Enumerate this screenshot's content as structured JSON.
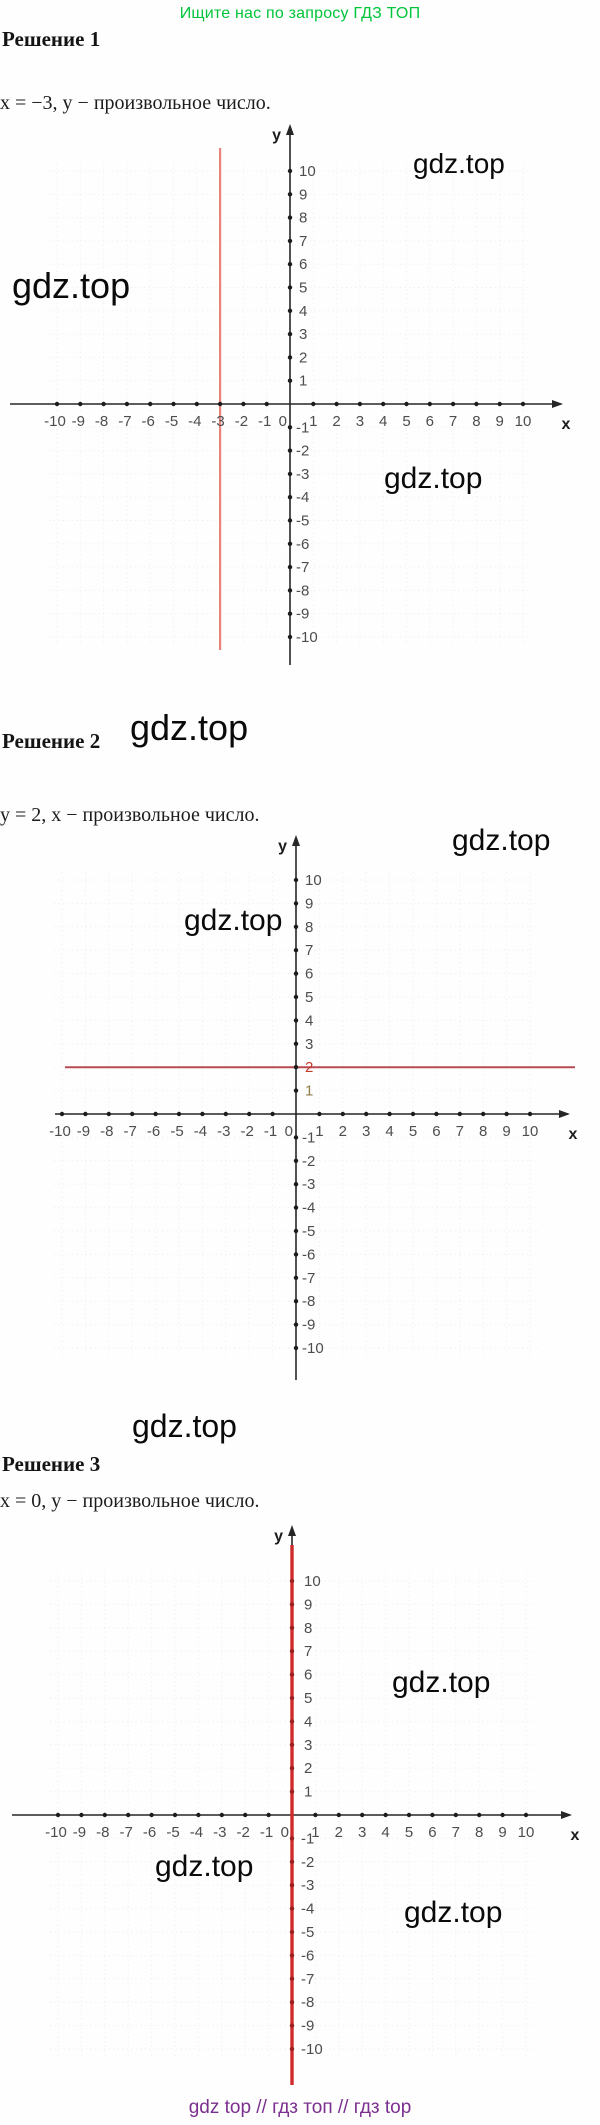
{
  "header": {
    "text": "Ищите нас по запросу ГДЗ ТОП",
    "color": "#00c53a"
  },
  "watermark": {
    "text": "gdz.top"
  },
  "footer": {
    "text": "gdz top  //  гдз топ  //  гдз top",
    "color": "#7b2f8f"
  },
  "sections": [
    {
      "title": "Решение 1",
      "equation": "x = −3, y − произвольное число."
    },
    {
      "title": "Решение 2",
      "equation": "y = 2, x − произвольное число."
    },
    {
      "title": "Решение 3",
      "equation": "x = 0, y − произвольное число."
    }
  ],
  "chart_data": {
    "type": "line",
    "x_axis_label": "x",
    "y_axis_label": "y",
    "origin_label": "0",
    "x_range": [
      -10,
      10
    ],
    "y_range": [
      -10,
      10
    ],
    "tick_step": 1,
    "grid": "faint",
    "plots": [
      {
        "equation": "x = −3",
        "line": {
          "orientation": "vertical",
          "value": -3
        },
        "line_color": "#e8837e",
        "line_width": 2.2
      },
      {
        "equation": "y = 2",
        "line": {
          "orientation": "horizontal",
          "value": 2
        },
        "line_color": "#b84a52",
        "line_width": 2,
        "y_label_colors": {
          "2": "#c23b30",
          "1": "#8f7d45"
        }
      },
      {
        "equation": "x = 0",
        "line": {
          "orientation": "vertical",
          "value": 0
        },
        "line_color": "#cf2b2b",
        "line_width": 3.4,
        "y_tick_dot_color": "#9e1f1f"
      }
    ]
  }
}
